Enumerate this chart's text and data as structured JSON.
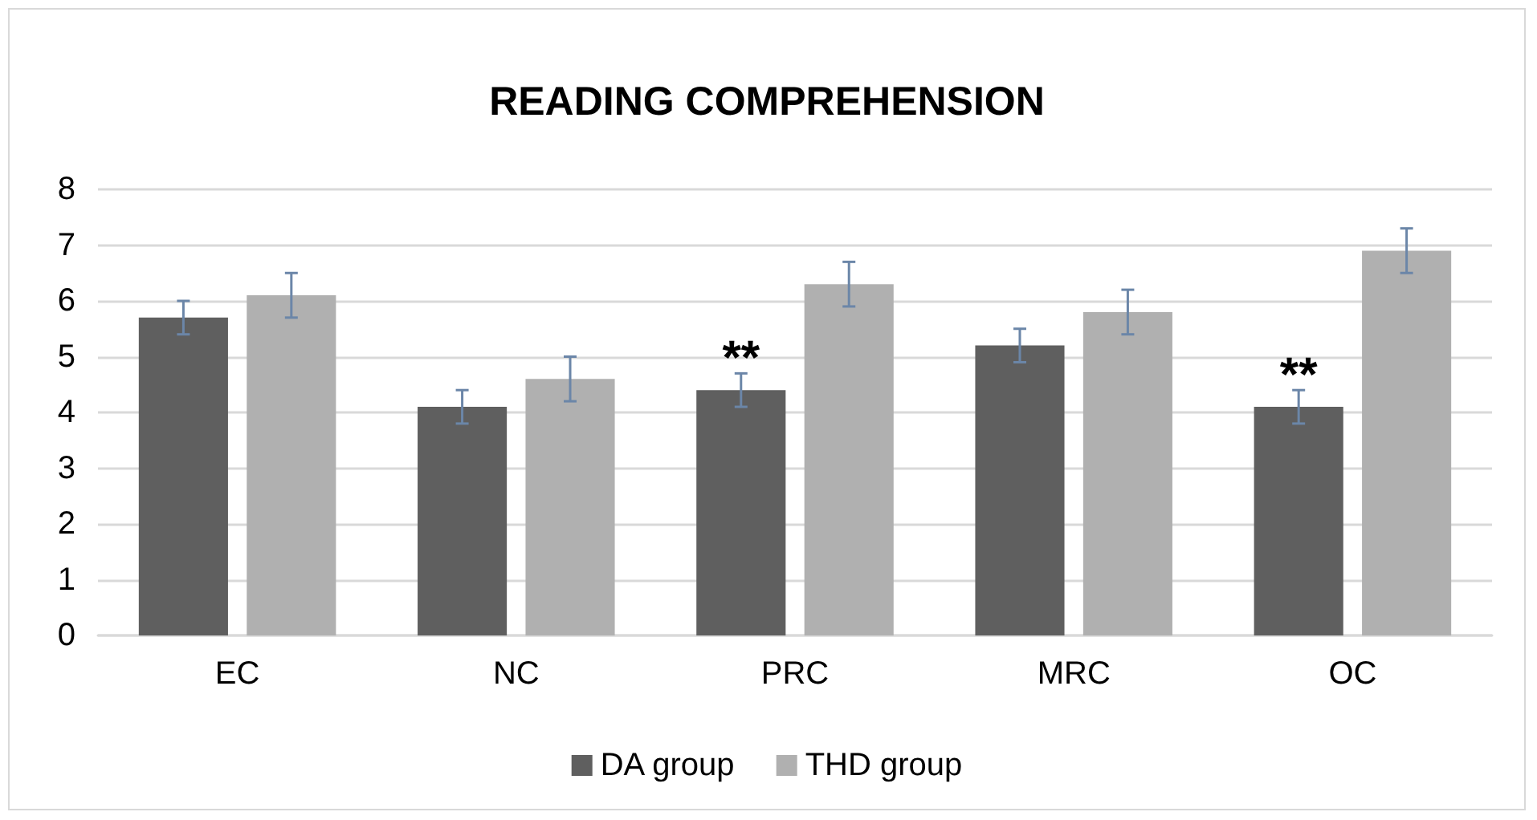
{
  "chart_data": {
    "type": "bar",
    "title": "READING COMPREHENSION",
    "categories": [
      "EC",
      "NC",
      "PRC",
      "MRC",
      "OC"
    ],
    "series": [
      {
        "name": "DA group",
        "color": "#5f5f5f",
        "values": [
          5.7,
          4.1,
          4.4,
          5.2,
          4.1
        ],
        "errors": [
          0.3,
          0.3,
          0.3,
          0.3,
          0.3
        ],
        "value_labels": [
          null,
          null,
          "**",
          null,
          "**"
        ]
      },
      {
        "name": "THD group",
        "color": "#b0b0b0",
        "values": [
          6.1,
          4.6,
          6.3,
          5.8,
          6.9
        ],
        "errors": [
          0.4,
          0.4,
          0.4,
          0.4,
          0.4
        ]
      }
    ],
    "ylim": [
      0,
      8
    ],
    "yticks": [
      0,
      1,
      2,
      3,
      4,
      5,
      6,
      7,
      8
    ],
    "grid": "y",
    "legend": "bottom"
  }
}
